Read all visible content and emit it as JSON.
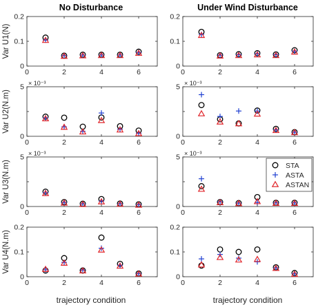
{
  "column_titles": [
    "No Disturbance",
    "Under Wind Disturbance"
  ],
  "xlabel": "trajectory condition",
  "legend": {
    "placement": "right-of-U3-wind-panel",
    "entries": [
      {
        "label": "STA",
        "marker": "circle",
        "color": "#000000"
      },
      {
        "label": "ASTA",
        "marker": "plus",
        "color": "#1f3fd1"
      },
      {
        "label": "ASTAN",
        "marker": "triangle",
        "color": "#e0262b"
      }
    ]
  },
  "chart_data": [
    {
      "type": "scatter",
      "row": 0,
      "col": 0,
      "ylabel": "Var U1(N)",
      "xlim": [
        0,
        7
      ],
      "ylim": [
        0,
        0.2
      ],
      "yticks": [
        "0",
        "0.1",
        "0.2"
      ],
      "yscale_label": "",
      "xticks": [
        "0",
        "2",
        "4",
        "6"
      ],
      "x": [
        1,
        2,
        3,
        4,
        5,
        6
      ],
      "series": [
        {
          "name": "STA",
          "values": [
            0.115,
            0.042,
            0.046,
            0.046,
            0.046,
            0.058
          ]
        },
        {
          "name": "ASTA",
          "values": [
            0.105,
            0.042,
            0.044,
            0.044,
            0.044,
            0.055
          ]
        },
        {
          "name": "ASTAN",
          "values": [
            0.104,
            0.04,
            0.042,
            0.043,
            0.043,
            0.052
          ]
        }
      ]
    },
    {
      "type": "scatter",
      "row": 0,
      "col": 1,
      "ylabel": "",
      "xlim": [
        0,
        7
      ],
      "ylim": [
        0,
        0.2
      ],
      "yticks": [
        "0",
        "0.1",
        "0.2"
      ],
      "yscale_label": "",
      "xticks": [
        "0",
        "2",
        "4",
        "6"
      ],
      "x": [
        1,
        2,
        3,
        4,
        5,
        6
      ],
      "series": [
        {
          "name": "STA",
          "values": [
            0.138,
            0.044,
            0.048,
            0.052,
            0.047,
            0.064
          ]
        },
        {
          "name": "ASTA",
          "values": [
            0.128,
            0.044,
            0.046,
            0.05,
            0.046,
            0.06
          ]
        },
        {
          "name": "ASTAN",
          "values": [
            0.124,
            0.041,
            0.043,
            0.046,
            0.043,
            0.057
          ]
        }
      ]
    },
    {
      "type": "scatter",
      "row": 1,
      "col": 0,
      "ylabel": "Var U2(N.m)",
      "xlim": [
        0,
        7
      ],
      "ylim": [
        0,
        0.005
      ],
      "yticks": [
        "0",
        "",
        "5"
      ],
      "yscale_label": "× 10⁻³",
      "xticks": [
        "0",
        "2",
        "4",
        "6"
      ],
      "x": [
        1,
        2,
        3,
        4,
        5,
        6
      ],
      "series": [
        {
          "name": "STA",
          "values": [
            0.00198,
            0.00188,
            0.00097,
            0.0019,
            0.00102,
            0.00058
          ]
        },
        {
          "name": "ASTA",
          "values": [
            0.00185,
            0.00095,
            0.0005,
            0.00235,
            0.00072,
            0.0003
          ]
        },
        {
          "name": "ASTAN",
          "values": [
            0.00178,
            0.00092,
            0.00045,
            0.0016,
            0.00065,
            0.00028
          ]
        }
      ]
    },
    {
      "type": "scatter",
      "row": 1,
      "col": 1,
      "ylabel": "",
      "xlim": [
        0,
        7
      ],
      "ylim": [
        0,
        0.005
      ],
      "yticks": [
        "0",
        "",
        "5"
      ],
      "yscale_label": "× 10⁻³",
      "xticks": [
        "0",
        "2",
        "4",
        "6"
      ],
      "x": [
        1,
        2,
        3,
        4,
        5,
        6
      ],
      "series": [
        {
          "name": "STA",
          "values": [
            0.00315,
            0.00172,
            0.0013,
            0.0026,
            0.00075,
            0.00042
          ]
        },
        {
          "name": "ASTA",
          "values": [
            0.0042,
            0.002,
            0.00255,
            0.00255,
            0.00065,
            0.0004
          ]
        },
        {
          "name": "ASTAN",
          "values": [
            0.00228,
            0.00145,
            0.00128,
            0.00225,
            0.0006,
            0.00038
          ]
        }
      ]
    },
    {
      "type": "scatter",
      "row": 2,
      "col": 0,
      "ylabel": "Var U3(N.m)",
      "xlim": [
        0,
        7
      ],
      "ylim": [
        0,
        0.005
      ],
      "yticks": [
        "0",
        "",
        "5"
      ],
      "yscale_label": "× 10⁻³",
      "xticks": [
        "0",
        "2",
        "4",
        "6"
      ],
      "x": [
        1,
        2,
        3,
        4,
        5,
        6
      ],
      "series": [
        {
          "name": "STA",
          "values": [
            0.0015,
            0.00045,
            0.00028,
            0.00075,
            0.0003,
            0.00022
          ]
        },
        {
          "name": "ASTA",
          "values": [
            0.0014,
            0.0004,
            0.00025,
            0.00055,
            0.00026,
            0.00018
          ]
        },
        {
          "name": "ASTAN",
          "values": [
            0.00132,
            0.00036,
            0.00022,
            0.00048,
            0.00024,
            0.00015
          ]
        }
      ]
    },
    {
      "type": "scatter",
      "row": 2,
      "col": 1,
      "ylabel": "",
      "xlim": [
        0,
        7
      ],
      "ylim": [
        0,
        0.005
      ],
      "yticks": [
        "0",
        "",
        "5"
      ],
      "yscale_label": "× 10⁻³",
      "xticks": [
        "0",
        "2",
        "4",
        "6"
      ],
      "x": [
        1,
        2,
        3,
        4,
        5,
        6
      ],
      "series": [
        {
          "name": "STA",
          "values": [
            0.00205,
            0.00045,
            0.00035,
            0.00095,
            0.00038,
            0.00038
          ]
        },
        {
          "name": "ASTA",
          "values": [
            0.0028,
            0.00048,
            0.00033,
            0.0004,
            0.00036,
            0.00035
          ]
        },
        {
          "name": "ASTAN",
          "values": [
            0.00175,
            0.0004,
            0.0003,
            0.0005,
            0.00033,
            0.00032
          ]
        }
      ]
    },
    {
      "type": "scatter",
      "row": 3,
      "col": 0,
      "ylabel": "Var U4(N.m)",
      "xlim": [
        0,
        7
      ],
      "ylim": [
        0,
        0.2
      ],
      "yticks": [
        "0",
        "0.1",
        "0.2"
      ],
      "yscale_label": "",
      "xticks": [
        "0",
        "2",
        "4",
        "6"
      ],
      "x": [
        1,
        2,
        3,
        4,
        5,
        6
      ],
      "series": [
        {
          "name": "STA",
          "values": [
            0.025,
            0.075,
            0.025,
            0.158,
            0.052,
            0.013
          ]
        },
        {
          "name": "ASTA",
          "values": [
            0.028,
            0.058,
            0.027,
            0.115,
            0.046,
            0.012
          ]
        },
        {
          "name": "ASTAN",
          "values": [
            0.03,
            0.055,
            0.024,
            0.108,
            0.043,
            0.011
          ]
        }
      ]
    },
    {
      "type": "scatter",
      "row": 3,
      "col": 1,
      "ylabel": "",
      "xlim": [
        0,
        7
      ],
      "ylim": [
        0,
        0.2
      ],
      "yticks": [
        "0",
        "0.1",
        "0.2"
      ],
      "yscale_label": "",
      "xticks": [
        "0",
        "2",
        "4",
        "6"
      ],
      "x": [
        1,
        2,
        3,
        4,
        5,
        6
      ],
      "series": [
        {
          "name": "STA",
          "values": [
            0.045,
            0.11,
            0.1,
            0.11,
            0.038,
            0.015
          ]
        },
        {
          "name": "ASTA",
          "values": [
            0.072,
            0.09,
            0.075,
            0.06,
            0.035,
            0.012
          ]
        },
        {
          "name": "ASTAN",
          "values": [
            0.048,
            0.078,
            0.068,
            0.07,
            0.034,
            0.01
          ]
        }
      ]
    }
  ]
}
